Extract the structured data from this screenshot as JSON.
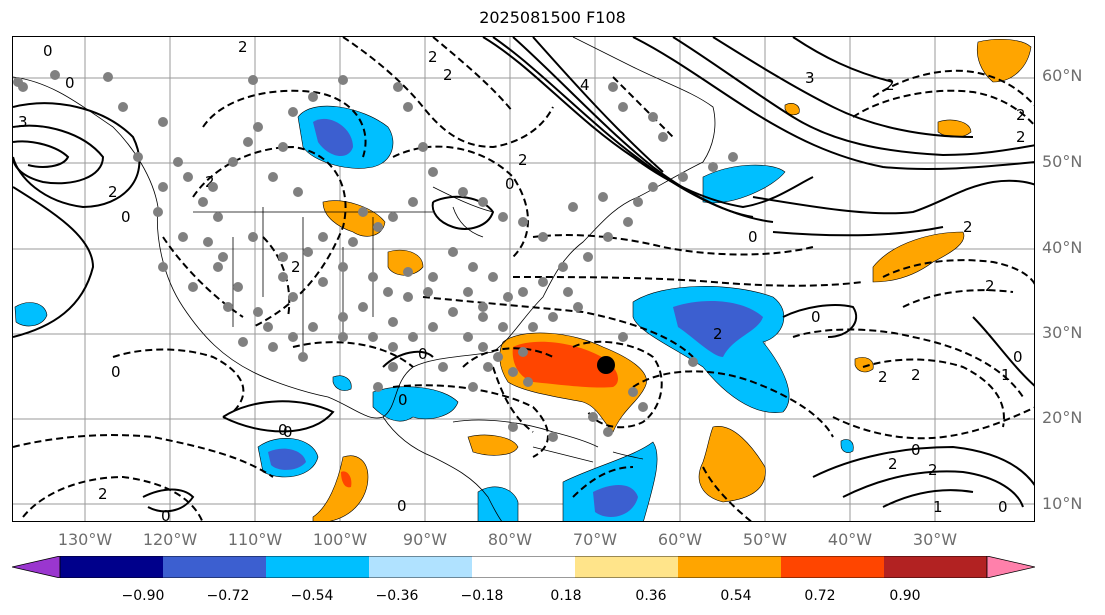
{
  "title": "2025081500 F108",
  "lat_labels": [
    "60°N",
    "50°N",
    "40°N",
    "30°N",
    "20°N",
    "10°N"
  ],
  "lon_labels": [
    "130°W",
    "120°W",
    "110°W",
    "100°W",
    "90°W",
    "80°W",
    "70°W",
    "60°W",
    "50°W",
    "40°W",
    "30°W"
  ],
  "contour_labels": [
    "0",
    "2",
    "0",
    "2",
    "3",
    "2",
    "4",
    "2",
    "2",
    "3",
    "2",
    "2",
    "2",
    "2",
    "0",
    "2",
    "0",
    "2",
    "0",
    "0",
    "0",
    "2",
    "0",
    "0",
    "2",
    "1",
    "0",
    "0",
    "2",
    "2",
    "0",
    "0",
    "2",
    "1",
    "0",
    "0",
    "2",
    "2",
    "0"
  ],
  "colorbar": {
    "ticks": [
      "−0.90",
      "−0.72",
      "−0.54",
      "−0.36",
      "−0.18",
      "0.18",
      "0.36",
      "0.54",
      "0.72",
      "0.90"
    ],
    "colors": [
      "#9a36cf",
      "#00008b",
      "#3c5fd0",
      "#00bfff",
      "#b0e2ff",
      "#ffffff",
      "#ffe48a",
      "#ffa500",
      "#ff4500",
      "#b22222",
      "#ff80ab"
    ]
  },
  "shading_colors": {
    "light_blue": "#00bfff",
    "mid_blue": "#3c5fd0",
    "orange": "#ffa500",
    "red_orange": "#ff4500",
    "deep_red": "#b22222"
  },
  "storm_marker": "tropical-cyclone-center"
}
